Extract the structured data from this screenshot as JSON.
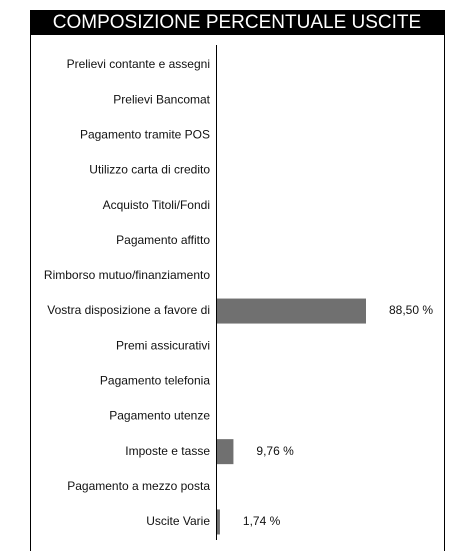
{
  "chart_data": {
    "type": "bar",
    "orientation": "horizontal",
    "title": "COMPOSIZIONE PERCENTUALE USCITE",
    "categories": [
      "Prelievi contante e assegni",
      "Prelievi Bancomat",
      "Pagamento tramite POS",
      "Utilizzo carta di credito",
      "Acquisto Titoli/Fondi",
      "Pagamento affitto",
      "Rimborso mutuo/finanziamento",
      "Vostra disposizione a favore di",
      "Premi assicurativi",
      "Pagamento telefonia",
      "Pagamento utenze",
      "Imposte e tasse",
      "Pagamento a mezzo posta",
      "Uscite Varie"
    ],
    "values": [
      0,
      0,
      0,
      0,
      0,
      0,
      0,
      88.5,
      0,
      0,
      0,
      9.76,
      0,
      1.74
    ],
    "value_labels": [
      null,
      null,
      null,
      null,
      null,
      null,
      null,
      "88,50 %",
      null,
      null,
      null,
      "9,76 %",
      null,
      "1,74 %"
    ],
    "color": "#707070"
  }
}
